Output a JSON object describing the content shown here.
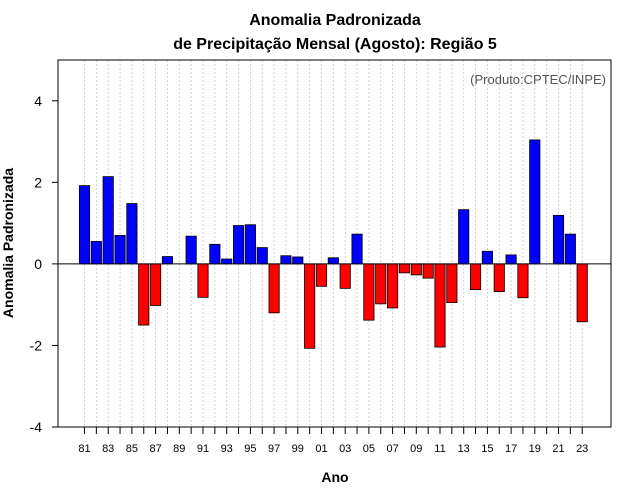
{
  "chart_data": {
    "type": "bar",
    "title_line1": "Anomalia Padronizada",
    "title_line2": "de Precipitação Mensal (Agosto): Região 5",
    "annotation": "(Produto:CPTEC/INPE)",
    "xlabel": "Ano",
    "ylabel": "Anomalia Padronizada",
    "ylim": [
      -4,
      5
    ],
    "yticks": [
      "-4",
      "-2",
      "0",
      "2",
      "4"
    ],
    "grid": "vertical dotted",
    "positive_color": "#0000ff",
    "negative_color": "#ff0000",
    "categories": [
      "81",
      "82",
      "83",
      "84",
      "85",
      "86",
      "87",
      "88",
      "89",
      "90",
      "91",
      "92",
      "93",
      "94",
      "95",
      "96",
      "97",
      "98",
      "99",
      "00",
      "01",
      "02",
      "03",
      "04",
      "05",
      "06",
      "07",
      "08",
      "09",
      "10",
      "11",
      "12",
      "13",
      "14",
      "15",
      "16",
      "17",
      "18",
      "19",
      "20",
      "21",
      "22",
      "23"
    ],
    "xtick_labels": [
      "81",
      "83",
      "85",
      "87",
      "89",
      "91",
      "93",
      "95",
      "97",
      "99",
      "01",
      "03",
      "05",
      "07",
      "09",
      "11",
      "13",
      "15",
      "17",
      "19",
      "21",
      "23"
    ],
    "values": [
      1.92,
      0.55,
      2.14,
      0.7,
      1.48,
      -1.5,
      -1.02,
      0.18,
      0.0,
      0.68,
      -0.82,
      0.48,
      0.12,
      0.94,
      0.96,
      0.4,
      -1.2,
      0.2,
      0.17,
      -2.07,
      -0.55,
      0.15,
      -0.6,
      0.73,
      -1.38,
      -0.98,
      -1.08,
      -0.22,
      -0.27,
      -0.35,
      -2.04,
      -0.95,
      1.33,
      -0.63,
      0.31,
      -0.68,
      0.22,
      -0.83,
      3.04,
      0.0,
      1.19,
      0.73,
      -1.42
    ]
  }
}
